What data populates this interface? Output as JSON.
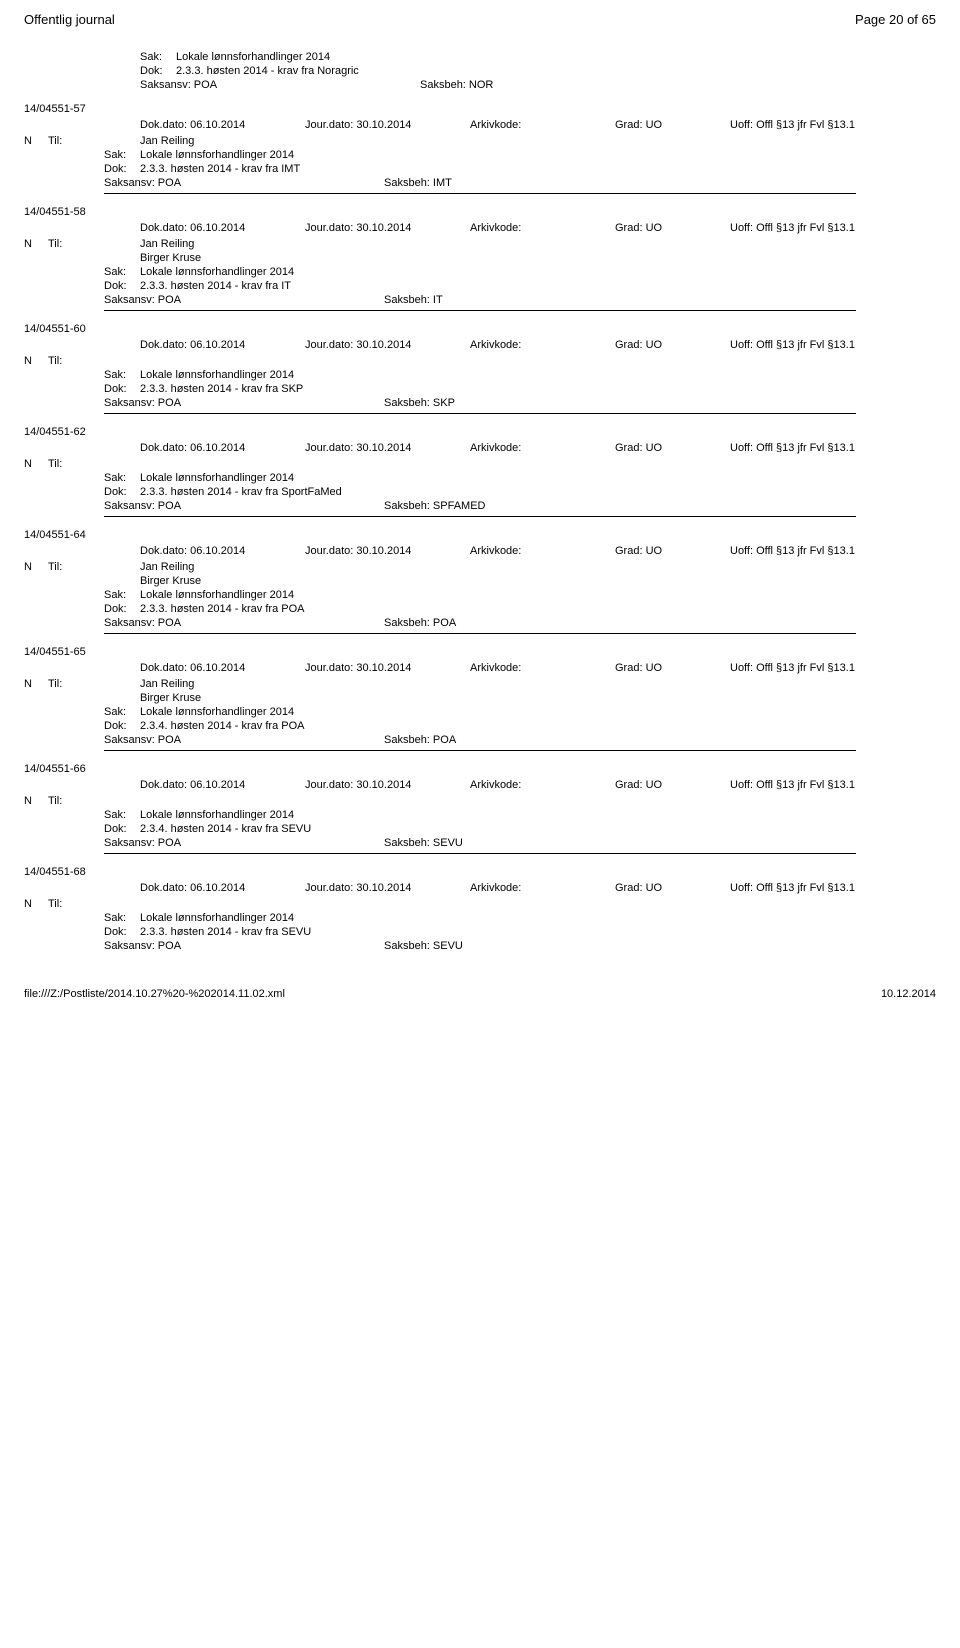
{
  "header": {
    "left": "Offentlig journal",
    "right": "Page 20 of 65"
  },
  "entries": [
    {
      "top_sak": "Lokale lønnsforhandlinger 2014",
      "top_dok": "2.3.3. høsten 2014 - krav fra Noragric",
      "top_saksansv": "Saksansv: POA",
      "top_saksbeh": "Saksbeh: NOR",
      "case_num": "14/04551-57",
      "dok_dato": "Dok.dato: 06.10.2014",
      "jour_dato": "Jour.dato: 30.10.2014",
      "arkivkode": "Arkivkode:",
      "grad": "Grad: UO",
      "uoff": "Uoff: Offl §13 jfr Fvl §13.1",
      "n": "N",
      "til_label": "Til:",
      "til_values": [
        "Jan Reiling"
      ],
      "sak": "Lokale lønnsforhandlinger 2014",
      "dok": "2.3.3. høsten 2014 - krav fra IMT",
      "saksansv": "Saksansv: POA",
      "saksbeh": "Saksbeh: IMT"
    },
    {
      "case_num": "14/04551-58",
      "dok_dato": "Dok.dato: 06.10.2014",
      "jour_dato": "Jour.dato: 30.10.2014",
      "arkivkode": "Arkivkode:",
      "grad": "Grad: UO",
      "uoff": "Uoff: Offl §13 jfr Fvl §13.1",
      "n": "N",
      "til_label": "Til:",
      "til_values": [
        "Jan Reiling",
        "Birger Kruse"
      ],
      "sak": "Lokale lønnsforhandlinger 2014",
      "dok": "2.3.3. høsten 2014 - krav fra IT",
      "saksansv": "Saksansv: POA",
      "saksbeh": "Saksbeh: IT"
    },
    {
      "case_num": "14/04551-60",
      "dok_dato": "Dok.dato: 06.10.2014",
      "jour_dato": "Jour.dato: 30.10.2014",
      "arkivkode": "Arkivkode:",
      "grad": "Grad: UO",
      "uoff": "Uoff: Offl §13 jfr Fvl §13.1",
      "n": "N",
      "til_label": "Til:",
      "til_values": [
        ""
      ],
      "sak": "Lokale lønnsforhandlinger 2014",
      "dok": "2.3.3. høsten 2014 - krav fra SKP",
      "saksansv": "Saksansv: POA",
      "saksbeh": "Saksbeh: SKP"
    },
    {
      "case_num": "14/04551-62",
      "dok_dato": "Dok.dato: 06.10.2014",
      "jour_dato": "Jour.dato: 30.10.2014",
      "arkivkode": "Arkivkode:",
      "grad": "Grad: UO",
      "uoff": "Uoff: Offl §13 jfr Fvl §13.1",
      "n": "N",
      "til_label": "Til:",
      "til_values": [
        ""
      ],
      "sak": "Lokale lønnsforhandlinger 2014",
      "dok": "2.3.3. høsten 2014 - krav fra SportFaMed",
      "saksansv": "Saksansv: POA",
      "saksbeh": "Saksbeh: SPFAMED"
    },
    {
      "case_num": "14/04551-64",
      "dok_dato": "Dok.dato: 06.10.2014",
      "jour_dato": "Jour.dato: 30.10.2014",
      "arkivkode": "Arkivkode:",
      "grad": "Grad: UO",
      "uoff": "Uoff: Offl §13 jfr Fvl §13.1",
      "n": "N",
      "til_label": "Til:",
      "til_values": [
        "Jan Reiling",
        "Birger Kruse"
      ],
      "sak": "Lokale lønnsforhandlinger 2014",
      "dok": "2.3.3. høsten 2014 - krav fra POA",
      "saksansv": "Saksansv: POA",
      "saksbeh": "Saksbeh: POA"
    },
    {
      "case_num": "14/04551-65",
      "dok_dato": "Dok.dato: 06.10.2014",
      "jour_dato": "Jour.dato: 30.10.2014",
      "arkivkode": "Arkivkode:",
      "grad": "Grad: UO",
      "uoff": "Uoff: Offl §13 jfr Fvl §13.1",
      "n": "N",
      "til_label": "Til:",
      "til_values": [
        "Jan Reiling",
        "Birger Kruse"
      ],
      "sak": "Lokale lønnsforhandlinger 2014",
      "dok": "2.3.4. høsten 2014 - krav fra POA",
      "saksansv": "Saksansv: POA",
      "saksbeh": "Saksbeh: POA"
    },
    {
      "case_num": "14/04551-66",
      "dok_dato": "Dok.dato: 06.10.2014",
      "jour_dato": "Jour.dato: 30.10.2014",
      "arkivkode": "Arkivkode:",
      "grad": "Grad: UO",
      "uoff": "Uoff: Offl §13 jfr Fvl §13.1",
      "n": "N",
      "til_label": "Til:",
      "til_values": [
        ""
      ],
      "sak": "Lokale lønnsforhandlinger 2014",
      "dok": "2.3.4. høsten 2014 - krav fra SEVU",
      "saksansv": "Saksansv: POA",
      "saksbeh": "Saksbeh: SEVU"
    },
    {
      "case_num": "14/04551-68",
      "dok_dato": "Dok.dato: 06.10.2014",
      "jour_dato": "Jour.dato: 30.10.2014",
      "arkivkode": "Arkivkode:",
      "grad": "Grad: UO",
      "uoff": "Uoff: Offl §13 jfr Fvl §13.1",
      "n": "N",
      "til_label": "Til:",
      "til_values": [
        ""
      ],
      "sak": "Lokale lønnsforhandlinger 2014",
      "dok": "2.3.3. høsten 2014 - krav fra SEVU",
      "saksansv": "Saksansv: POA",
      "saksbeh": "Saksbeh: SEVU"
    }
  ],
  "labels": {
    "sak": "Sak:",
    "dok": "Dok:"
  },
  "footer": {
    "left": "file:///Z:/Postliste/2014.10.27%20-%202014.11.02.xml",
    "right": "10.12.2014"
  }
}
